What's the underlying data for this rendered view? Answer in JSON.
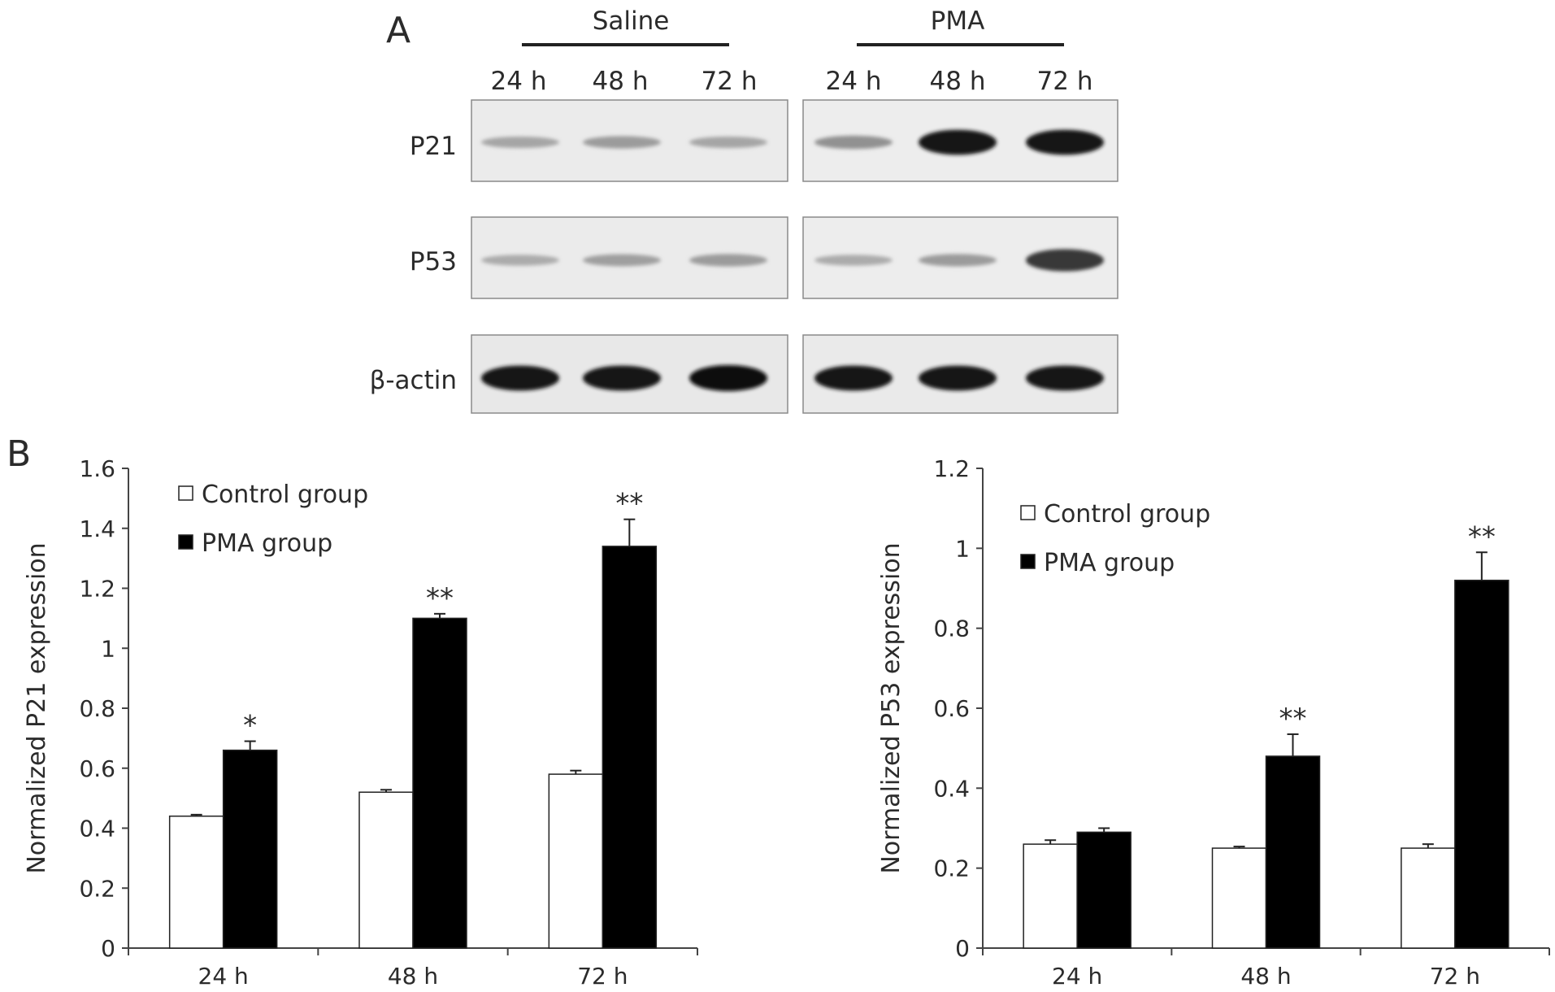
{
  "panels": {
    "a_label": "A",
    "b_label": "B"
  },
  "blot": {
    "groups": [
      "Saline",
      "PMA"
    ],
    "lanes": [
      "24 h",
      "48 h",
      "72 h",
      "24 h",
      "48 h",
      "72 h"
    ],
    "proteins": [
      "P21",
      "P53",
      "β-actin"
    ],
    "band_intensity": {
      "P21": [
        0.25,
        0.3,
        0.25,
        0.35,
        0.95,
        0.95
      ],
      "P53": [
        0.22,
        0.28,
        0.3,
        0.22,
        0.3,
        0.8
      ],
      "beta_actin": [
        0.95,
        0.95,
        1.0,
        0.95,
        0.95,
        0.95
      ]
    }
  },
  "chart_data": [
    {
      "type": "bar",
      "categories": [
        "24 h",
        "48 h",
        "72 h"
      ],
      "series": [
        {
          "name": "Control group",
          "values": [
            0.44,
            0.52,
            0.58
          ],
          "errors": [
            0.005,
            0.008,
            0.012
          ],
          "color": "#ffffff"
        },
        {
          "name": "PMA group",
          "values": [
            0.66,
            1.1,
            1.34
          ],
          "errors": [
            0.03,
            0.015,
            0.09
          ],
          "color": "#000000"
        }
      ],
      "significance": [
        "*",
        "**",
        "**"
      ],
      "ylabel": "Normalized P21 expression",
      "ylim": [
        0,
        1.6
      ],
      "yticks": [
        "0",
        "0.2",
        "0.4",
        "0.6",
        "0.8",
        "1",
        "1.2",
        "1.4",
        "1.6"
      ],
      "legend_position": "top-left",
      "grid": false
    },
    {
      "type": "bar",
      "categories": [
        "24 h",
        "48 h",
        "72 h"
      ],
      "series": [
        {
          "name": "Control group",
          "values": [
            0.26,
            0.25,
            0.25
          ],
          "errors": [
            0.01,
            0.004,
            0.01
          ],
          "color": "#ffffff"
        },
        {
          "name": "PMA group",
          "values": [
            0.29,
            0.48,
            0.92
          ],
          "errors": [
            0.01,
            0.055,
            0.07
          ],
          "color": "#000000"
        }
      ],
      "significance": [
        "",
        "**",
        "**"
      ],
      "ylabel": "Normalized P53 expression",
      "ylim": [
        0,
        1.2
      ],
      "yticks": [
        "0",
        "0.2",
        "0.4",
        "0.6",
        "0.8",
        "1",
        "1.2"
      ],
      "legend_position": "top-left",
      "grid": false
    }
  ]
}
